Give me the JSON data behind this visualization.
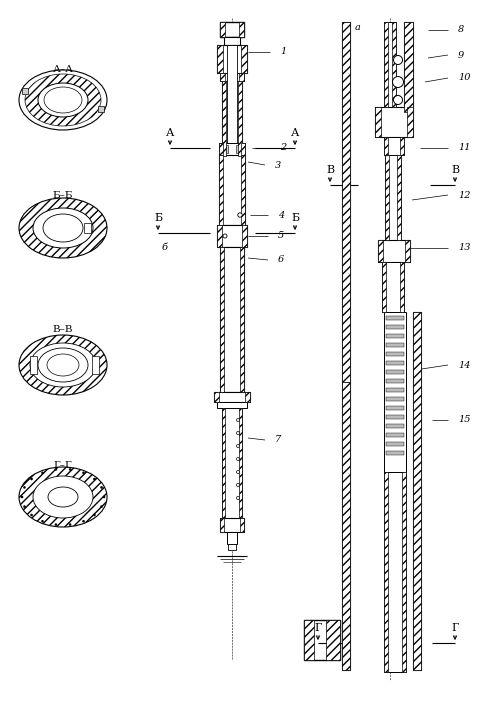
{
  "background_color": "#ffffff",
  "figsize": [
    4.96,
    7.1
  ],
  "dpi": 100,
  "sections": {
    "AA_label": "А–А",
    "BB_label": "Б–Б",
    "VV_label": "В–В",
    "GG_label": "Г–Г"
  }
}
